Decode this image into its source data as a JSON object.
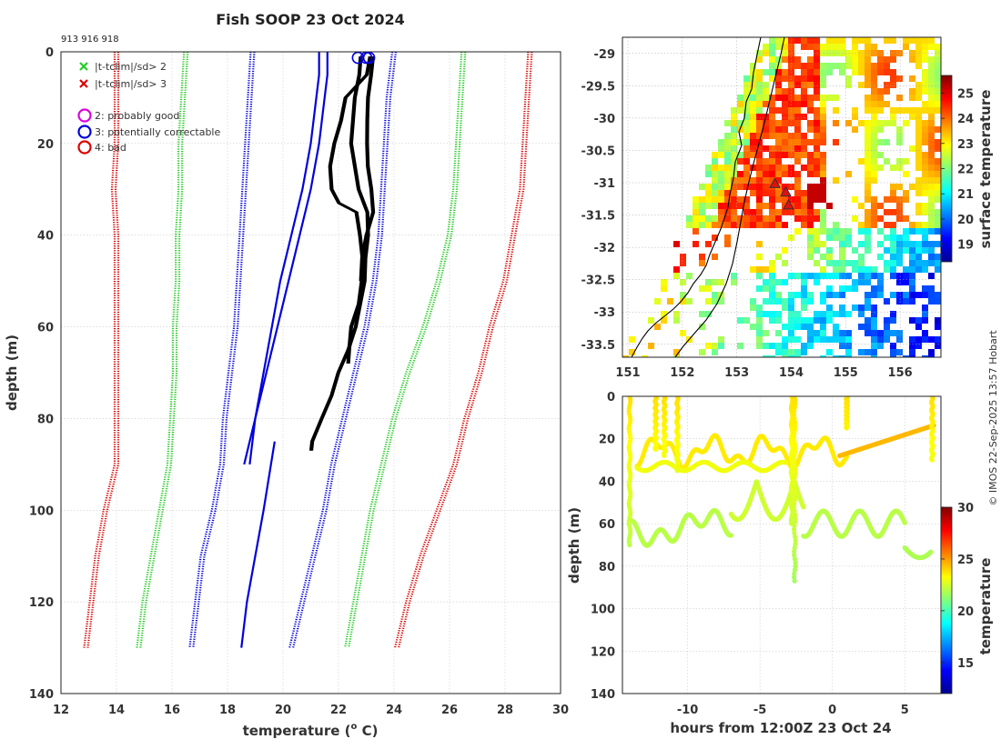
{
  "title": "Fish SOOP 23 Oct 2024",
  "probe_ids": "913 916 918",
  "credit": "© IMOS 22-Sep-2025 13:57 Hobart",
  "legend": {
    "x_green": "|t-tclim|/sd> 2",
    "x_red": "|t-tclim|/sd> 3",
    "flag2": "2: probably good",
    "flag3": "3: potentially correctable",
    "flag4": "4: bad"
  },
  "colors": {
    "x_green": "#22cc22",
    "x_red": "#dd0000",
    "flag2": "#dd00dd",
    "flag3": "#0000dd",
    "flag4": "#dd0000",
    "clim_mean": "#0000dd",
    "clim_sd2": "#22cc22",
    "clim_sd3": "#dd0000",
    "profile": "#000000",
    "coast": "#000000"
  },
  "chart_data": [
    {
      "id": "profiles",
      "type": "line",
      "xlabel": "temperature (° C)",
      "xlabel_prefix": "temperature (",
      "xlabel_sup": "o",
      "xlabel_suffix": " C)",
      "ylabel": "depth (m)",
      "xlim": [
        12,
        30
      ],
      "ylim": [
        140,
        0
      ],
      "xticks": [
        "12",
        "14",
        "16",
        "18",
        "20",
        "22",
        "24",
        "26",
        "28",
        "30"
      ],
      "yticks": [
        "0",
        "20",
        "40",
        "60",
        "80",
        "100",
        "120",
        "140"
      ],
      "climatology": [
        {
          "name": "mean",
          "style": "solid",
          "depth": [
            0,
            5,
            10,
            20,
            30,
            40,
            50,
            60,
            70,
            80,
            90
          ],
          "temp_a": [
            21.3,
            21.3,
            21.2,
            21.0,
            20.7,
            20.3,
            19.9,
            19.6,
            19.3,
            19.0,
            18.8
          ],
          "temp_b": [
            21.6,
            21.6,
            21.5,
            21.3,
            21.0,
            20.6,
            20.2,
            19.8,
            19.4,
            19.0,
            18.6
          ]
        },
        {
          "name": "mean",
          "style": "solid",
          "depth": [
            85,
            100,
            110,
            120,
            130
          ],
          "temp_a": [
            19.7,
            19.3,
            19.0,
            18.7,
            18.5
          ]
        },
        {
          "name": "mean+sd",
          "style": "dotted",
          "depth": [
            0,
            10,
            20,
            30,
            40,
            50,
            60,
            70,
            80,
            90,
            100,
            110,
            120,
            130
          ],
          "temp": [
            24.0,
            23.8,
            23.7,
            23.6,
            23.5,
            23.3,
            23.0,
            22.6,
            22.2,
            21.8,
            21.5,
            21.1,
            20.7,
            20.3
          ]
        },
        {
          "name": "mean-sd",
          "style": "dotted",
          "depth": [
            0,
            10,
            20,
            30,
            40,
            50,
            60,
            70,
            80,
            90,
            100,
            110,
            120,
            130
          ],
          "temp": [
            18.9,
            18.8,
            18.7,
            18.6,
            18.5,
            18.4,
            18.3,
            18.1,
            17.9,
            17.8,
            17.5,
            17.1,
            16.9,
            16.7
          ]
        },
        {
          "name": "mean+2sd",
          "style": "dotted",
          "depth": [
            0,
            10,
            20,
            30,
            40,
            50,
            60,
            70,
            80,
            90,
            100,
            110,
            120,
            130
          ],
          "temp": [
            26.5,
            26.4,
            26.3,
            26.2,
            26.0,
            25.6,
            25.1,
            24.5,
            24.0,
            23.6,
            23.2,
            22.9,
            22.6,
            22.3
          ]
        },
        {
          "name": "mean-2sd",
          "style": "dotted",
          "depth": [
            0,
            10,
            20,
            30,
            40,
            50,
            60,
            70,
            80,
            90,
            100,
            110,
            120,
            130
          ],
          "temp": [
            16.5,
            16.4,
            16.3,
            16.3,
            16.2,
            16.2,
            16.1,
            16.1,
            16.0,
            15.9,
            15.6,
            15.3,
            15.0,
            14.8
          ]
        },
        {
          "name": "mean+3sd",
          "style": "dotted",
          "depth": [
            0,
            10,
            20,
            30,
            40,
            50,
            60,
            70,
            80,
            90,
            100,
            110,
            120,
            130
          ],
          "temp": [
            28.9,
            28.8,
            28.7,
            28.6,
            28.3,
            28.0,
            27.5,
            27.1,
            26.6,
            26.2,
            25.6,
            25.0,
            24.5,
            24.1
          ]
        },
        {
          "name": "mean-3sd",
          "style": "dotted",
          "depth": [
            0,
            10,
            20,
            30,
            40,
            50,
            60,
            70,
            80,
            90,
            100,
            110,
            120,
            130
          ],
          "temp": [
            14.0,
            14.0,
            14.0,
            13.9,
            14.0,
            14.0,
            14.0,
            14.0,
            14.0,
            14.0,
            13.6,
            13.3,
            13.1,
            12.9
          ]
        }
      ],
      "observed": [
        {
          "depth": [
            1,
            5,
            10,
            20,
            30,
            35,
            40,
            45,
            50,
            60,
            65,
            70,
            75,
            80,
            85,
            87
          ],
          "temp": [
            22.8,
            22.7,
            22.6,
            22.5,
            22.7,
            23.0,
            23.1,
            23.0,
            22.9,
            22.6,
            22.4,
            22.0,
            21.7,
            21.4,
            21.1,
            21.0
          ]
        },
        {
          "depth": [
            1,
            5,
            10,
            15,
            20,
            25,
            30,
            33,
            35,
            40,
            45,
            50,
            55,
            60,
            65,
            68
          ],
          "temp": [
            23.1,
            23.0,
            22.3,
            22.1,
            21.8,
            21.7,
            21.8,
            22.0,
            22.6,
            22.8,
            22.9,
            22.8,
            22.7,
            22.5,
            22.4,
            22.3
          ]
        },
        {
          "depth": [
            1,
            5,
            10,
            15,
            20,
            25,
            30,
            35,
            40,
            45,
            50
          ],
          "temp": [
            23.2,
            23.2,
            23.1,
            23.0,
            23.0,
            23.1,
            23.2,
            23.2,
            23.0,
            22.9,
            22.8
          ]
        }
      ],
      "surface_flags": [
        {
          "temp": 22.7,
          "depth": 0.5,
          "flag": 3
        },
        {
          "temp": 23.0,
          "depth": 0.5,
          "flag": 3
        },
        {
          "temp": 23.1,
          "depth": 0.5,
          "flag": 3
        }
      ]
    },
    {
      "id": "map",
      "type": "heatmap",
      "colorbar_label": "surface temperature",
      "clim": [
        18.3,
        25.7
      ],
      "colorbar_ticks": [
        "19",
        "20",
        "21",
        "22",
        "23",
        "24",
        "25"
      ],
      "xlim": [
        150.9,
        156.75
      ],
      "ylim": [
        -33.7,
        -28.75
      ],
      "xticks": [
        "151",
        "152",
        "153",
        "154",
        "155",
        "156"
      ],
      "yticks": [
        "-29",
        "-29.5",
        "-30",
        "-30.5",
        "-31",
        "-31.5",
        "-32",
        "-32.5",
        "-33",
        "-33.5"
      ],
      "stations": [
        {
          "lon": 153.7,
          "lat": -31.02
        },
        {
          "lon": 153.9,
          "lat": -31.15
        },
        {
          "lon": 153.95,
          "lat": -31.35
        }
      ]
    },
    {
      "id": "timeseries",
      "type": "scatter",
      "xlabel": "hours from 12:00Z 23 Oct 24",
      "ylabel": "depth (m)",
      "colorbar_label": "temperature",
      "xlim": [
        -14.5,
        7.5
      ],
      "ylim": [
        140,
        0
      ],
      "clim": [
        12,
        30
      ],
      "xticks": [
        "-10",
        "-5",
        "0",
        "5"
      ],
      "yticks": [
        "0",
        "20",
        "40",
        "60",
        "80",
        "100",
        "120",
        "140"
      ],
      "colorbar_ticks": [
        "15",
        "20",
        "25",
        "30"
      ],
      "gap_hours": [
        -3.0,
        1.0
      ]
    }
  ]
}
